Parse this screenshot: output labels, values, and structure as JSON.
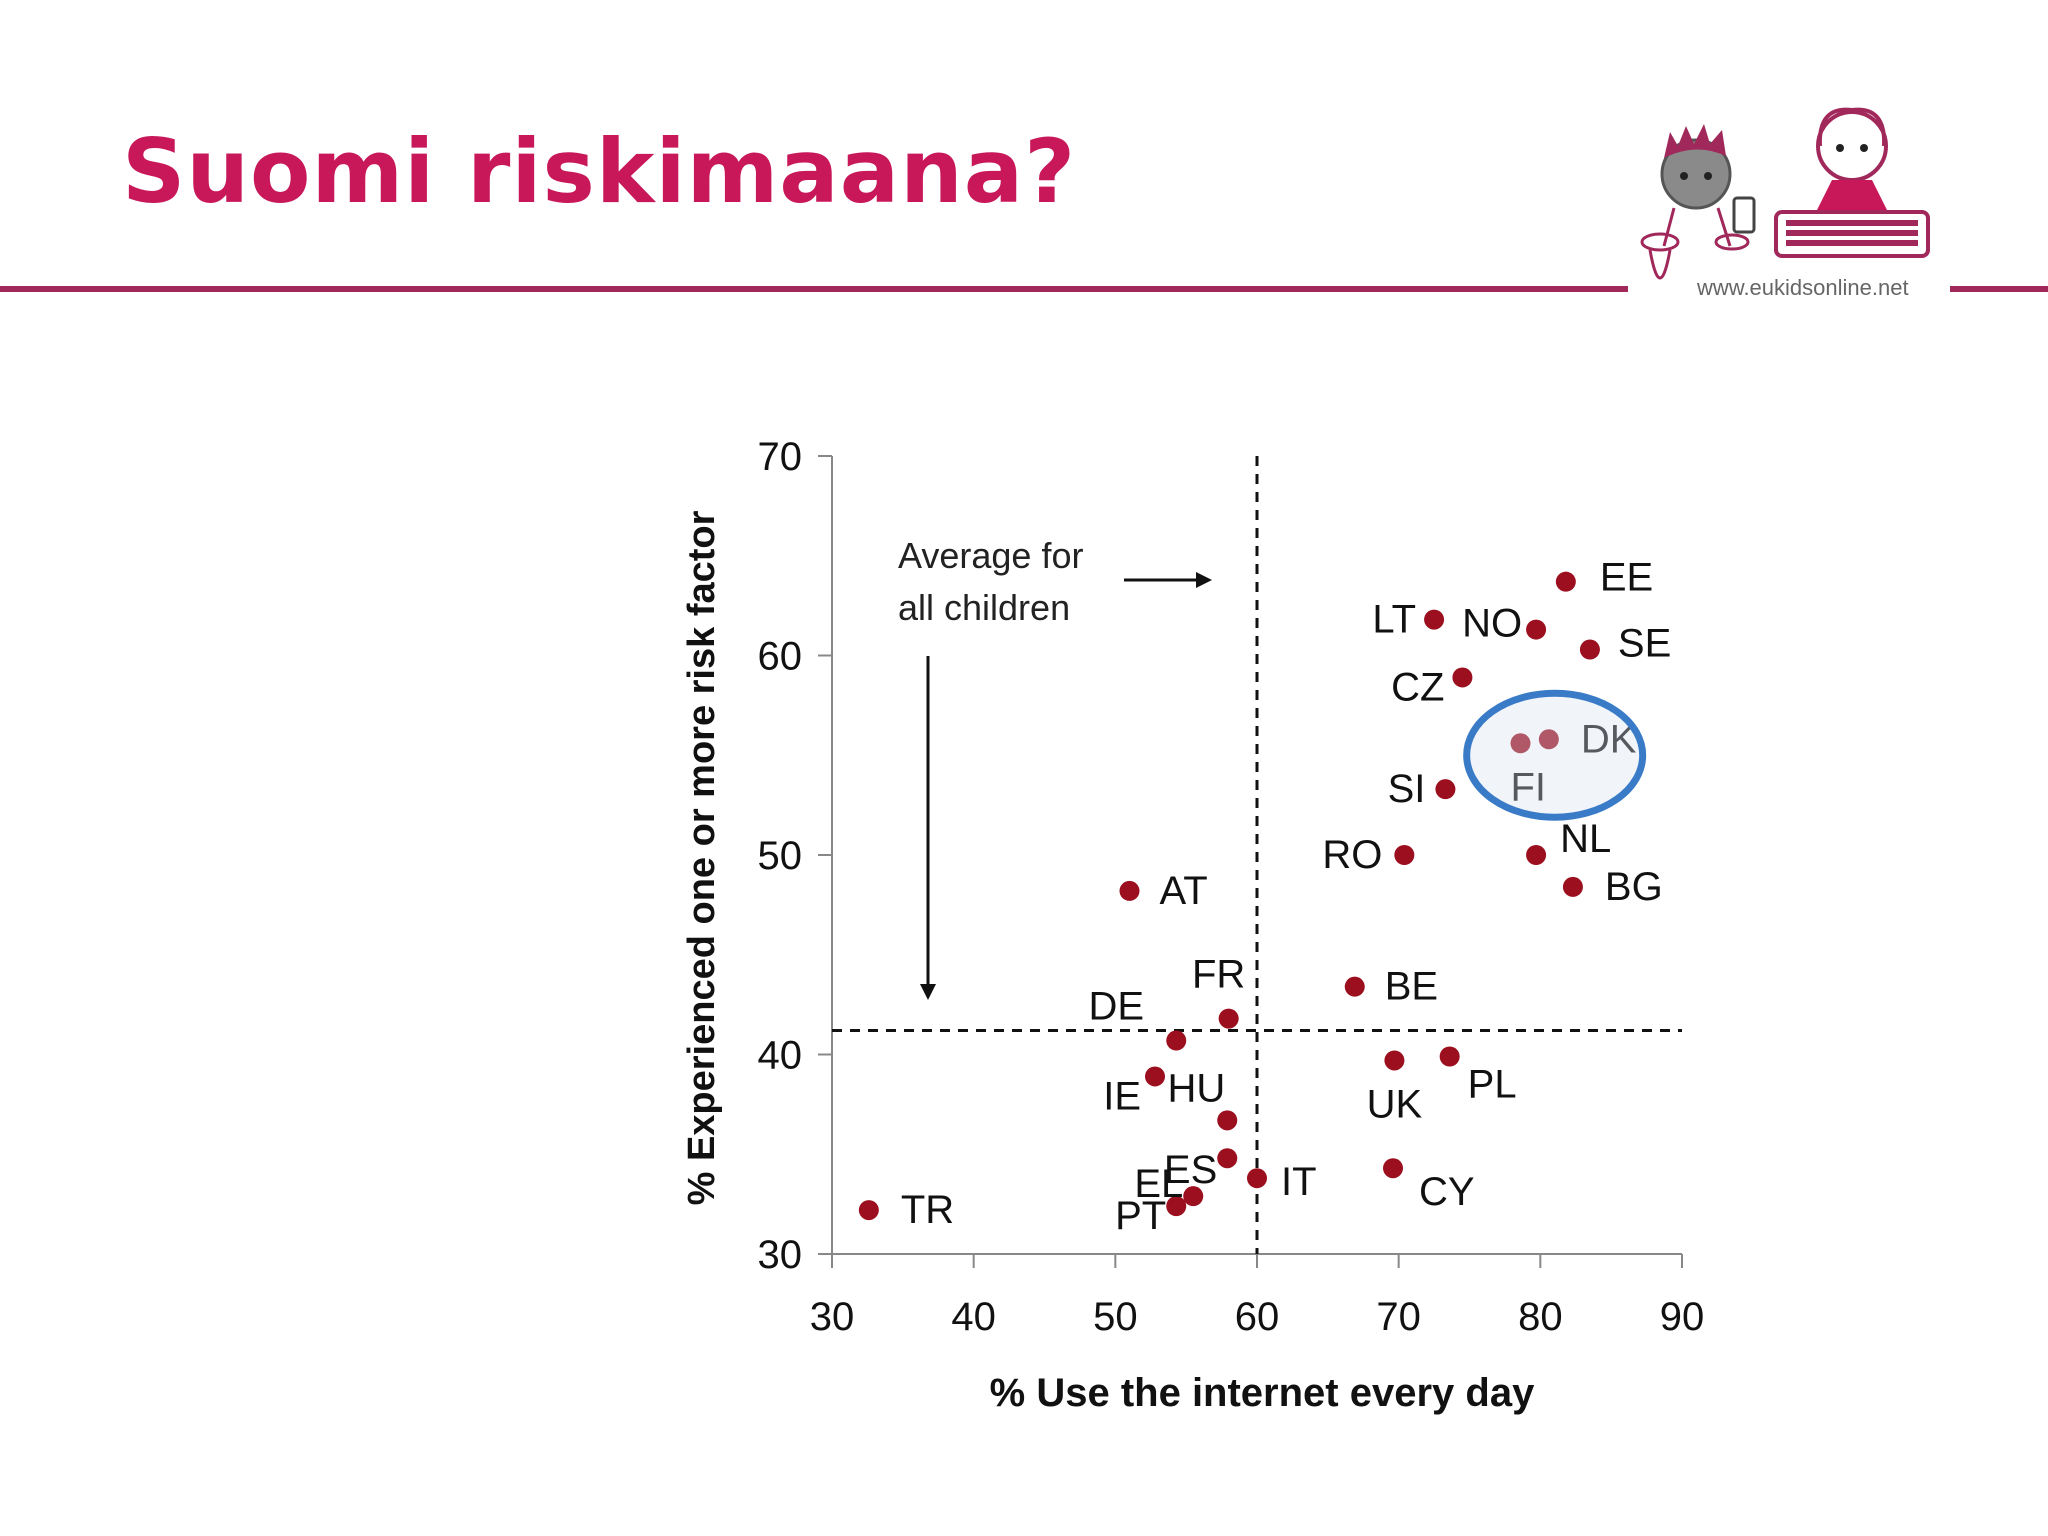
{
  "slide": {
    "title": "Suomi riskimaana?",
    "logo_url": "www.eukidsonline.net",
    "accent_color": "#c8185a",
    "rule_color": "#a0285a"
  },
  "chart_data": {
    "type": "scatter",
    "xlabel": "% Use the internet every day",
    "ylabel": "% Experienced one or more risk factor",
    "xlim": [
      30,
      90
    ],
    "ylim": [
      30,
      70
    ],
    "xticks": [
      30,
      40,
      50,
      60,
      70,
      80,
      90
    ],
    "yticks": [
      30,
      40,
      50,
      60,
      70
    ],
    "point_color": "#9b0f1f",
    "reference_lines": {
      "x": 60,
      "y": 41.2,
      "style": "dashed"
    },
    "annotation": {
      "line1": "Average for",
      "line2": "all children"
    },
    "highlight": {
      "points": [
        "DK",
        "FI"
      ],
      "color": "#3a7bc8",
      "shape": "ellipse"
    },
    "points": [
      {
        "label": "EE",
        "x": 81.8,
        "y": 63.7
      },
      {
        "label": "LT",
        "x": 72.5,
        "y": 61.8
      },
      {
        "label": "NO",
        "x": 79.7,
        "y": 61.3
      },
      {
        "label": "SE",
        "x": 83.5,
        "y": 60.3
      },
      {
        "label": "CZ",
        "x": 74.5,
        "y": 58.9
      },
      {
        "label": "DK",
        "x": 80.6,
        "y": 55.8
      },
      {
        "label": "FI",
        "x": 78.6,
        "y": 55.6
      },
      {
        "label": "SI",
        "x": 73.3,
        "y": 53.3
      },
      {
        "label": "RO",
        "x": 70.4,
        "y": 50.0
      },
      {
        "label": "NL",
        "x": 79.7,
        "y": 50.0
      },
      {
        "label": "BG",
        "x": 82.3,
        "y": 48.4
      },
      {
        "label": "AT",
        "x": 51.0,
        "y": 48.2
      },
      {
        "label": "BE",
        "x": 66.9,
        "y": 43.4
      },
      {
        "label": "FR",
        "x": 58.0,
        "y": 41.8
      },
      {
        "label": "DE",
        "x": 54.3,
        "y": 40.7
      },
      {
        "label": "UK",
        "x": 69.7,
        "y": 39.7
      },
      {
        "label": "PL",
        "x": 73.6,
        "y": 39.9
      },
      {
        "label": "IE",
        "x": 52.8,
        "y": 38.9
      },
      {
        "label": "HU",
        "x": 57.9,
        "y": 36.7
      },
      {
        "label": "ES",
        "x": 57.9,
        "y": 34.8
      },
      {
        "label": "IT",
        "x": 60.0,
        "y": 33.8
      },
      {
        "label": "CY",
        "x": 69.6,
        "y": 34.3
      },
      {
        "label": "EL",
        "x": 55.5,
        "y": 32.9
      },
      {
        "label": "PT",
        "x": 54.3,
        "y": 32.4
      },
      {
        "label": "TR",
        "x": 32.6,
        "y": 32.2
      }
    ]
  }
}
